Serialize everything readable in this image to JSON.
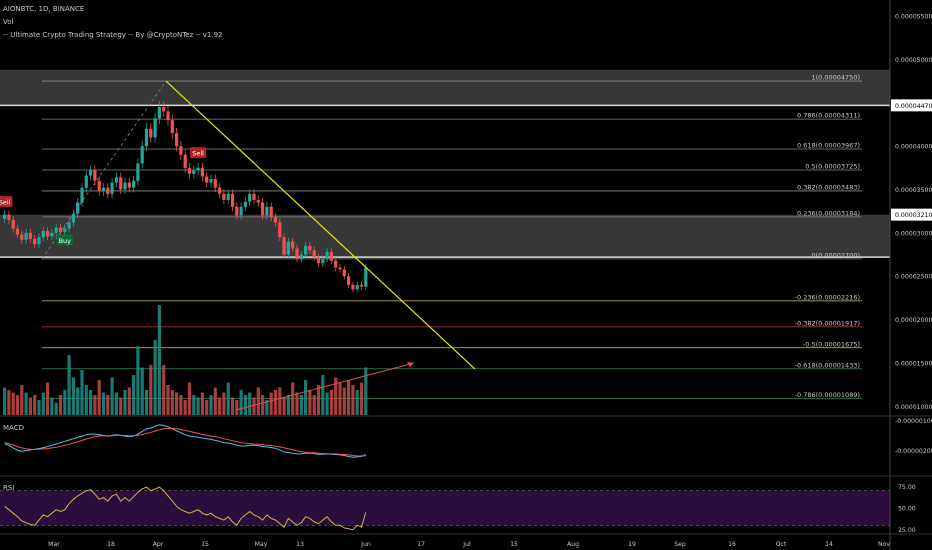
{
  "header": {
    "symbol_line": "AIONBTC, 1D, BINANCE",
    "vol_label": "Vol",
    "strategy_label": "-- Ultimate Crypto Trading Strategy -- By @CryptoNTez -- v1.92"
  },
  "colors": {
    "up": "#26a69a",
    "down": "#ef5350",
    "trendline": "#e6e600",
    "fib_gray": "#8a8a8a",
    "fib_yellow": "#d4d44a",
    "fib_red": "#b03030",
    "fib_green": "#2e8b57",
    "rsi_band": "#2a0d3d",
    "macd_line": "#4fc3f7",
    "signal_line": "#ef5350"
  },
  "price_axis": [
    "0.00005500",
    "0.00005000",
    "0.00004470",
    "0.00004000",
    "0.00003500",
    "0.00003210",
    "0.00003000",
    "0.00002500",
    "0.00002000",
    "0.00001500",
    "0.00001000"
  ],
  "price_tag_highlight": [
    "0.00004470",
    "0.00003210"
  ],
  "macd_axis": [
    "-0.00000100",
    "-0.00000200"
  ],
  "rsi_axis": [
    "75.00",
    "50.00",
    "25.00"
  ],
  "time_axis": [
    "Mar",
    "18",
    "Apr",
    "15",
    "May",
    "13",
    "Jun",
    "17",
    "Jul",
    "15",
    "Aug",
    "19",
    "Sep",
    "16",
    "Oct",
    "14",
    "Nov"
  ],
  "fib_levels": [
    {
      "label": "1(0.00004750)",
      "value": 4.75e-05,
      "tone": "gray"
    },
    {
      "label": "0.786(0.00004311)",
      "value": 4.311e-05,
      "tone": "gray"
    },
    {
      "label": "0.618(0.00003967)",
      "value": 3.967e-05,
      "tone": "gray"
    },
    {
      "label": "0.5(0.00003725)",
      "value": 3.725e-05,
      "tone": "gray"
    },
    {
      "label": "0.382(0.00003483)",
      "value": 3.483e-05,
      "tone": "gray"
    },
    {
      "label": "0.236(0.00003184)",
      "value": 3.184e-05,
      "tone": "gray"
    },
    {
      "label": "0(0.00002700)",
      "value": 2.7e-05,
      "tone": "gray"
    },
    {
      "label": "-0.236(0.00002216)",
      "value": 2.216e-05,
      "tone": "yellow"
    },
    {
      "label": "-0.382(0.00001917)",
      "value": 1.917e-05,
      "tone": "red"
    },
    {
      "label": "-0.5(0.00001675)",
      "value": 1.675e-05,
      "tone": "yellow"
    },
    {
      "label": "-0.618(0.00001433)",
      "value": 1.433e-05,
      "tone": "green"
    },
    {
      "label": "-0.786(0.00001089)",
      "value": 1.089e-05,
      "tone": "green"
    }
  ],
  "zones": [
    {
      "from": 4.47e-05,
      "to": 4.88e-05
    },
    {
      "from": 2.72e-05,
      "to": 3.21e-05
    }
  ],
  "signals": [
    {
      "label": "Sell",
      "type": "sell",
      "index": 0
    },
    {
      "label": "Buy",
      "type": "buy",
      "index": 14
    },
    {
      "label": "Sell",
      "type": "sell",
      "index": 45
    }
  ],
  "macd_label": "MACD",
  "rsi_label": "RSI",
  "chart_data": {
    "type": "candlestick",
    "title": "AIONBTC, 1D, BINANCE",
    "ylim": [
      9e-06,
      5.65e-05
    ],
    "closes": [
      3.21e-05,
      3.15e-05,
      3.05e-05,
      2.98e-05,
      2.92e-05,
      3e-05,
      2.93e-05,
      2.87e-05,
      2.95e-05,
      3.02e-05,
      2.96e-05,
      3e-05,
      3.06e-05,
      3.01e-05,
      3.05e-05,
      3.12e-05,
      3.22e-05,
      3.35e-05,
      3.52e-05,
      3.66e-05,
      3.72e-05,
      3.6e-05,
      3.48e-05,
      3.52e-05,
      3.45e-05,
      3.58e-05,
      3.64e-05,
      3.5e-05,
      3.58e-05,
      3.52e-05,
      3.6e-05,
      3.8e-05,
      4e-05,
      4.2e-05,
      4.1e-05,
      4.32e-05,
      4.45e-05,
      4.4e-05,
      4.3e-05,
      4.15e-05,
      4e-05,
      3.9e-05,
      3.75e-05,
      3.68e-05,
      3.72e-05,
      3.75e-05,
      3.65e-05,
      3.58e-05,
      3.62e-05,
      3.52e-05,
      3.45e-05,
      3.38e-05,
      3.45e-05,
      3.3e-05,
      3.2e-05,
      3.3e-05,
      3.36e-05,
      3.45e-05,
      3.38e-05,
      3.35e-05,
      3.2e-05,
      3.3e-05,
      3.18e-05,
      3.12e-05,
      2.95e-05,
      2.75e-05,
      2.9e-05,
      2.82e-05,
      2.7e-05,
      2.75e-05,
      2.85e-05,
      2.8e-05,
      2.72e-05,
      2.65e-05,
      2.7e-05,
      2.78e-05,
      2.68e-05,
      2.6e-05,
      2.58e-05,
      2.5e-05,
      2.4e-05,
      2.35e-05,
      2.4e-05,
      2.38e-05,
      2.6e-05
    ],
    "volume": [
      22,
      20,
      18,
      16,
      24,
      18,
      14,
      16,
      12,
      18,
      26,
      14,
      10,
      16,
      20,
      48,
      30,
      22,
      36,
      24,
      20,
      16,
      28,
      18,
      16,
      30,
      18,
      14,
      20,
      22,
      32,
      55,
      38,
      20,
      40,
      60,
      88,
      40,
      24,
      20,
      18,
      16,
      12,
      26,
      16,
      14,
      18,
      12,
      16,
      22,
      14,
      18,
      26,
      14,
      12,
      20,
      16,
      18,
      14,
      22,
      16,
      12,
      18,
      20,
      22,
      14,
      16,
      26,
      18,
      16,
      28,
      20,
      16,
      24,
      32,
      18,
      20,
      30,
      26,
      22,
      28,
      24,
      20,
      26,
      38
    ],
    "macd": [
      -5,
      -10,
      -18,
      -25,
      -28,
      -26,
      -24,
      -22,
      -20,
      -17,
      -14,
      -10,
      -6,
      -2,
      2,
      6,
      10,
      14,
      18,
      22,
      24,
      24,
      22,
      20,
      18,
      20,
      22,
      20,
      18,
      16,
      18,
      24,
      32,
      40,
      42,
      48,
      52,
      50,
      46,
      40,
      34,
      28,
      22,
      18,
      16,
      15,
      12,
      10,
      8,
      5,
      2,
      -2,
      -3,
      -6,
      -10,
      -12,
      -12,
      -10,
      -10,
      -11,
      -14,
      -15,
      -17,
      -19,
      -24,
      -30,
      -32,
      -34,
      -36,
      -36,
      -34,
      -34,
      -35,
      -37,
      -37,
      -36,
      -37,
      -38,
      -39,
      -41,
      -44,
      -46,
      -45,
      -44,
      -38
    ],
    "signal": [
      -2,
      -5,
      -9,
      -14,
      -18,
      -21,
      -22,
      -23,
      -22,
      -21,
      -20,
      -18,
      -16,
      -13,
      -10,
      -7,
      -3,
      1,
      5,
      9,
      13,
      16,
      18,
      19,
      19,
      19,
      20,
      20,
      20,
      19,
      19,
      20,
      22,
      26,
      29,
      33,
      37,
      40,
      41,
      41,
      40,
      38,
      35,
      32,
      29,
      26,
      23,
      21,
      18,
      16,
      13,
      10,
      7,
      4,
      1,
      -2,
      -4,
      -5,
      -6,
      -7,
      -8,
      -10,
      -11,
      -13,
      -15,
      -18,
      -21,
      -24,
      -27,
      -29,
      -31,
      -32,
      -33,
      -34,
      -35,
      -35,
      -36,
      -36,
      -37,
      -38,
      -39,
      -41,
      -42,
      -42,
      -42
    ],
    "rsi": [
      52,
      48,
      44,
      40,
      35,
      33,
      31,
      30,
      36,
      42,
      40,
      44,
      48,
      46,
      48,
      55,
      60,
      64,
      67,
      70,
      71,
      66,
      60,
      62,
      58,
      64,
      66,
      58,
      62,
      58,
      63,
      68,
      72,
      74,
      70,
      72,
      74,
      70,
      64,
      58,
      52,
      48,
      46,
      44,
      46,
      48,
      44,
      42,
      44,
      40,
      38,
      36,
      40,
      34,
      30,
      38,
      42,
      46,
      42,
      40,
      36,
      42,
      38,
      36,
      32,
      28,
      38,
      34,
      30,
      33,
      40,
      38,
      34,
      32,
      36,
      40,
      34,
      30,
      30,
      27,
      26,
      25,
      30,
      28,
      45
    ]
  }
}
